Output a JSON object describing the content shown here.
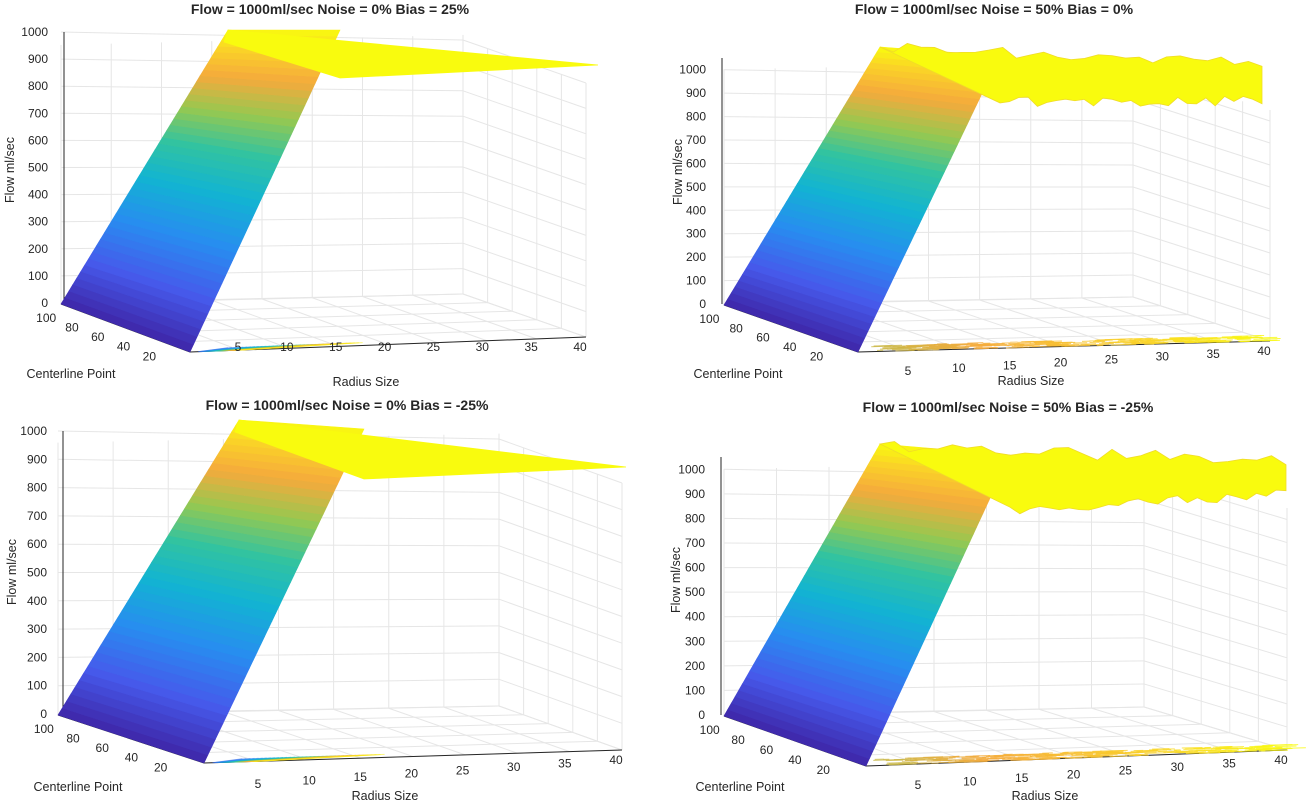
{
  "chart_data": [
    {
      "type": "surface",
      "title": "Flow = 1000ml/sec Noise = 0% Bias = 25%",
      "zlabel": "Flow ml/sec",
      "xlabel": "Radius Size",
      "ylabel": "Centerline Point",
      "zticks": [
        "0",
        "100",
        "200",
        "300",
        "400",
        "500",
        "600",
        "700",
        "800",
        "900",
        "1000"
      ],
      "xticks": [
        "5",
        "10",
        "15",
        "20",
        "25",
        "30",
        "35",
        "40"
      ],
      "yticks": [
        "100",
        "80",
        "60",
        "40",
        "20"
      ],
      "zlim": [
        0,
        1000
      ],
      "xlim": [
        0,
        40
      ],
      "ylim": [
        0,
        100
      ],
      "noise": 0,
      "bias": 25,
      "peak_flow": 1000,
      "colormap": "parula"
    },
    {
      "type": "surface",
      "title": "Flow = 1000ml/sec Noise = 50% Bias = 0%",
      "zlabel": "Flow ml/sec",
      "xlabel": "Radius Size",
      "ylabel": "Centerline Point",
      "zticks": [
        "0",
        "100",
        "200",
        "300",
        "400",
        "500",
        "600",
        "700",
        "800",
        "900",
        "1000"
      ],
      "xticks": [
        "5",
        "10",
        "15",
        "20",
        "25",
        "30",
        "35",
        "40"
      ],
      "yticks": [
        "100",
        "80",
        "60",
        "40",
        "20"
      ],
      "zlim": [
        0,
        1050
      ],
      "xlim": [
        0,
        40
      ],
      "ylim": [
        0,
        100
      ],
      "noise": 50,
      "bias": 0,
      "peak_flow": 1000,
      "colormap": "parula"
    },
    {
      "type": "surface",
      "title": "Flow = 1000ml/sec Noise = 0% Bias = -25%",
      "zlabel": "Flow ml/sec",
      "xlabel": "Radius Size",
      "ylabel": "Centerline Point",
      "zticks": [
        "0",
        "100",
        "200",
        "300",
        "400",
        "500",
        "600",
        "700",
        "800",
        "900",
        "1000"
      ],
      "xticks": [
        "5",
        "10",
        "15",
        "20",
        "25",
        "30",
        "35",
        "40"
      ],
      "yticks": [
        "100",
        "80",
        "60",
        "40",
        "20"
      ],
      "zlim": [
        0,
        1000
      ],
      "xlim": [
        0,
        40
      ],
      "ylim": [
        0,
        100
      ],
      "noise": 0,
      "bias": -25,
      "peak_flow": 1000,
      "colormap": "parula"
    },
    {
      "type": "surface",
      "title": "Flow = 1000ml/sec Noise = 50% Bias = -25%",
      "zlabel": "Flow ml/sec",
      "xlabel": "Radius Size",
      "ylabel": "Centerline Point",
      "zticks": [
        "0",
        "100",
        "200",
        "300",
        "400",
        "500",
        "600",
        "700",
        "800",
        "900",
        "1000"
      ],
      "xticks": [
        "5",
        "10",
        "15",
        "20",
        "25",
        "30",
        "35",
        "40"
      ],
      "yticks": [
        "100",
        "80",
        "60",
        "40",
        "20"
      ],
      "zlim": [
        0,
        1050
      ],
      "xlim": [
        0,
        40
      ],
      "ylim": [
        0,
        100
      ],
      "noise": 50,
      "bias": -25,
      "peak_flow": 1000,
      "colormap": "parula"
    }
  ]
}
